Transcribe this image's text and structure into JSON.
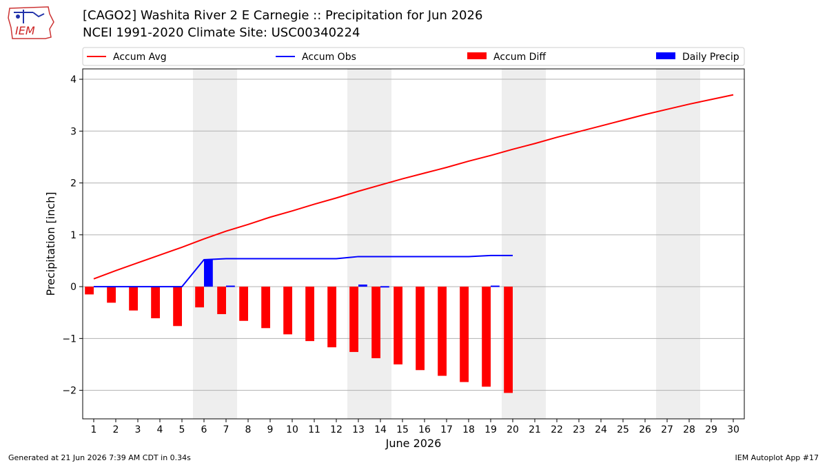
{
  "header": {
    "title_line1": "[CAGO2] Washita River 2 E Carnegie :: Precipitation for Jun 2026",
    "title_line2": "NCEI 1991-2020 Climate Site: USC00340224",
    "logo_text": "IEM"
  },
  "footer": {
    "generated": "Generated at 21 Jun 2026 7:39 AM CDT in 0.34s",
    "app": "IEM Autoplot App #17"
  },
  "chart_data": {
    "type": "bar",
    "xlabel": "June 2026",
    "ylabel": "Precipitation [inch]",
    "xlim": [
      0.5,
      30.5
    ],
    "ylim": [
      -2.55,
      4.2
    ],
    "yticks": [
      -2,
      -1,
      0,
      1,
      2,
      3,
      4
    ],
    "ytick_labels": [
      "−2",
      "−1",
      "0",
      "1",
      "2",
      "3",
      "4"
    ],
    "xticks": [
      1,
      2,
      3,
      4,
      5,
      6,
      7,
      8,
      9,
      10,
      11,
      12,
      13,
      14,
      15,
      16,
      17,
      18,
      19,
      20,
      21,
      22,
      23,
      24,
      25,
      26,
      27,
      28,
      29,
      30
    ],
    "grid": "horizontal",
    "weekend_shading": [
      [
        5.5,
        7.5
      ],
      [
        12.5,
        14.5
      ],
      [
        19.5,
        21.5
      ],
      [
        26.5,
        28.5
      ]
    ],
    "legend_placement": "top",
    "colors": {
      "avg": "#ff0000",
      "obs": "#0000ff",
      "diff": "#ff0000",
      "daily": "#0000ff",
      "shade": "#eeeeee",
      "grid": "#b0b0b0"
    },
    "series": [
      {
        "name": "Accum Avg",
        "kind": "line",
        "x": [
          1,
          2,
          3,
          4,
          5,
          6,
          7,
          8,
          9,
          10,
          11,
          12,
          13,
          14,
          15,
          16,
          17,
          18,
          19,
          20,
          21,
          22,
          23,
          24,
          25,
          26,
          27,
          28,
          29,
          30
        ],
        "values": [
          0.15,
          0.31,
          0.46,
          0.61,
          0.76,
          0.92,
          1.07,
          1.2,
          1.34,
          1.46,
          1.59,
          1.71,
          1.84,
          1.96,
          2.08,
          2.19,
          2.3,
          2.42,
          2.53,
          2.65,
          2.76,
          2.88,
          2.99,
          3.1,
          3.21,
          3.32,
          3.42,
          3.52,
          3.61,
          3.7
        ]
      },
      {
        "name": "Accum Obs",
        "kind": "line",
        "x": [
          1,
          2,
          3,
          4,
          5,
          6,
          7,
          8,
          9,
          10,
          11,
          12,
          13,
          14,
          15,
          16,
          17,
          18,
          19,
          20
        ],
        "values": [
          0,
          0,
          0,
          0,
          0,
          0.52,
          0.54,
          0.54,
          0.54,
          0.54,
          0.54,
          0.54,
          0.58,
          0.58,
          0.58,
          0.58,
          0.58,
          0.58,
          0.6,
          0.6
        ]
      },
      {
        "name": "Accum Diff",
        "kind": "bar",
        "x": [
          1,
          2,
          3,
          4,
          5,
          6,
          7,
          8,
          9,
          10,
          11,
          12,
          13,
          14,
          15,
          16,
          17,
          18,
          19,
          20
        ],
        "values": [
          -0.15,
          -0.31,
          -0.46,
          -0.61,
          -0.76,
          -0.4,
          -0.53,
          -0.66,
          -0.8,
          -0.92,
          -1.05,
          -1.17,
          -1.26,
          -1.38,
          -1.5,
          -1.61,
          -1.72,
          -1.84,
          -1.93,
          -2.05
        ]
      },
      {
        "name": "Daily Precip",
        "kind": "bar",
        "x": [
          1,
          2,
          3,
          4,
          5,
          6,
          7,
          8,
          9,
          10,
          11,
          12,
          13,
          14,
          15,
          16,
          17,
          18,
          19,
          20
        ],
        "values": [
          0,
          0,
          0,
          0,
          0,
          0.52,
          0.02,
          0,
          0,
          0,
          0,
          0,
          0.04,
          0.01,
          0,
          0,
          0,
          0,
          0.02,
          0
        ]
      }
    ]
  }
}
